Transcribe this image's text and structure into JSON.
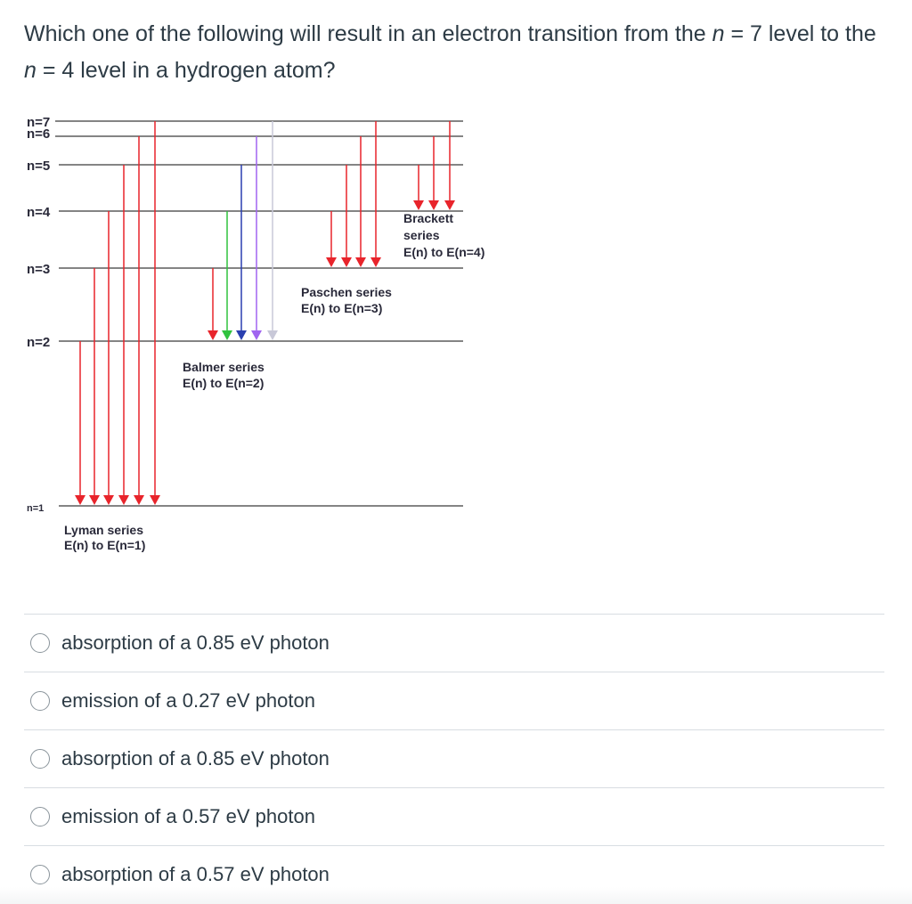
{
  "question": {
    "part1": "Which one of the following will result in an electron transition from the ",
    "n_symbol": "n",
    "part2": " = 7 level to the ",
    "part3": " = 4 level in a hydrogen atom?"
  },
  "diagram": {
    "levels": [
      {
        "label": "n=7",
        "n": 7
      },
      {
        "label": "n=6",
        "n": 6
      },
      {
        "label": "n=5",
        "n": 5
      },
      {
        "label": "n=4",
        "n": 4
      },
      {
        "label": "n=3",
        "n": 3
      },
      {
        "label": "n=2",
        "n": 2
      },
      {
        "label": "n=1",
        "n": 1
      }
    ],
    "series": {
      "lyman": {
        "name": "Lyman series",
        "formula": "E(n) to E(n=1)"
      },
      "balmer": {
        "name": "Balmer series",
        "formula": "E(n) to E(n=2)"
      },
      "paschen": {
        "name": "Paschen series",
        "formula": "E(n) to E(n=3)"
      },
      "brackett": {
        "name_line1": "Brackett",
        "name_line2": "series",
        "formula": "E(n) to E(n=4)"
      }
    },
    "colors": {
      "red": "#e8242b",
      "green": "#30c23e",
      "blue": "#2a3fb0",
      "violet": "#a064f0",
      "faint": "#c8c8d8",
      "line": "#3a3a3a"
    }
  },
  "answers": [
    {
      "label": "absorption of a 0.85 eV photon"
    },
    {
      "label": "emission of a 0.27 eV photon"
    },
    {
      "label": "absorption of a 0.85 eV photon"
    },
    {
      "label": "emission of a 0.57 eV photon"
    },
    {
      "label": "absorption of a 0.57 eV photon"
    }
  ]
}
